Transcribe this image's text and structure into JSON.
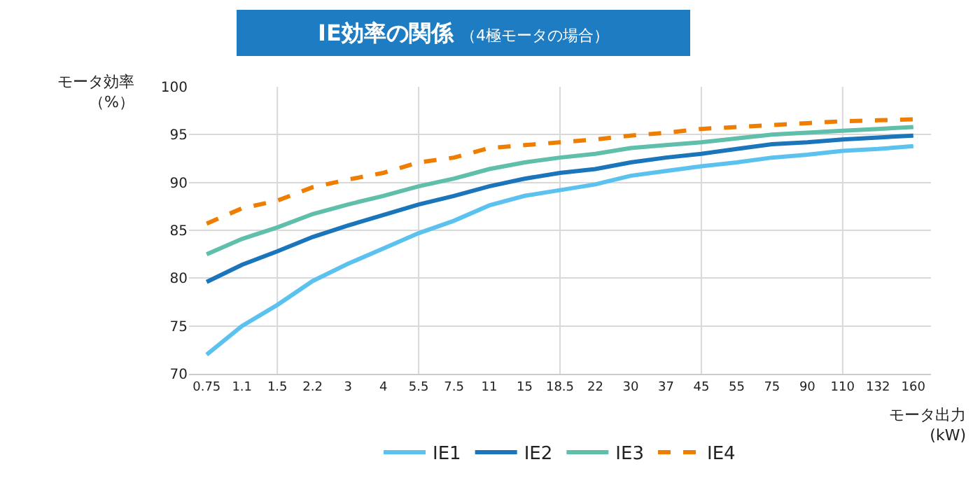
{
  "chart_data": {
    "type": "line",
    "title": "IE効率の関係",
    "subtitle": "（4極モータの場合）",
    "ylabel": "モータ効率（%）",
    "xlabel": "モータ出力(kW)",
    "categories": [
      "0.75",
      "1.1",
      "1.5",
      "2.2",
      "3",
      "4",
      "5.5",
      "7.5",
      "11",
      "15",
      "18.5",
      "22",
      "30",
      "37",
      "45",
      "55",
      "75",
      "90",
      "110",
      "132",
      "160"
    ],
    "series": [
      {
        "name": "IE1",
        "color": "#5bc2f0",
        "line_style": "solid",
        "values": [
          72.0,
          75.0,
          77.2,
          79.7,
          81.5,
          83.1,
          84.7,
          86.0,
          87.6,
          88.6,
          89.2,
          89.8,
          90.7,
          91.2,
          91.7,
          92.1,
          92.6,
          92.9,
          93.3,
          93.5,
          93.8
        ]
      },
      {
        "name": "IE2",
        "color": "#1b75bb",
        "line_style": "solid",
        "values": [
          79.6,
          81.4,
          82.8,
          84.3,
          85.5,
          86.6,
          87.7,
          88.6,
          89.6,
          90.4,
          91.0,
          91.4,
          92.1,
          92.6,
          93.0,
          93.5,
          94.0,
          94.2,
          94.5,
          94.7,
          94.9
        ]
      },
      {
        "name": "IE3",
        "color": "#5fbfaa",
        "line_style": "solid",
        "values": [
          82.5,
          84.1,
          85.3,
          86.7,
          87.7,
          88.6,
          89.6,
          90.4,
          91.4,
          92.1,
          92.6,
          93.0,
          93.6,
          93.9,
          94.2,
          94.6,
          95.0,
          95.2,
          95.4,
          95.6,
          95.8
        ]
      },
      {
        "name": "IE4",
        "color": "#ef7d00",
        "line_style": "dashed",
        "values": [
          85.7,
          87.3,
          88.1,
          89.5,
          90.3,
          91.0,
          92.1,
          92.6,
          93.6,
          93.9,
          94.2,
          94.5,
          94.9,
          95.2,
          95.6,
          95.8,
          96.0,
          96.2,
          96.4,
          96.5,
          96.6
        ]
      }
    ],
    "ylim": [
      70,
      100
    ],
    "yticks": [
      70,
      75,
      80,
      85,
      90,
      95,
      100
    ],
    "grid": true,
    "legend": "bottom",
    "marker": "none"
  }
}
